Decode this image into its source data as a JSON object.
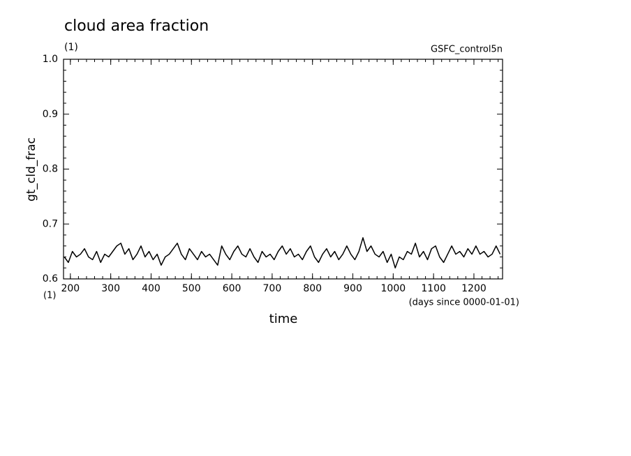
{
  "chart_data": {
    "type": "line",
    "title": "cloud area fraction",
    "subtitle": "(1)",
    "annotation": "GSFC_control5n",
    "y_label": "gt_cld_frac",
    "x_label": "time",
    "x_units": "(days since 0000-01-01)",
    "y_units": "(1)",
    "xlim": [
      183,
      1271
    ],
    "ylim": [
      0.6,
      1.0
    ],
    "xticks": [
      200,
      300,
      400,
      500,
      600,
      700,
      800,
      900,
      1000,
      1100,
      1200
    ],
    "yticks": [
      0.6,
      0.7,
      0.8,
      0.9,
      {
        "value": 1.0,
        "label": "1.0"
      }
    ],
    "x": [
      185,
      195,
      205,
      215,
      225,
      235,
      245,
      255,
      265,
      275,
      285,
      295,
      305,
      315,
      325,
      335,
      345,
      355,
      365,
      375,
      385,
      395,
      405,
      415,
      425,
      435,
      445,
      455,
      465,
      475,
      485,
      495,
      505,
      515,
      525,
      535,
      545,
      555,
      565,
      575,
      585,
      595,
      605,
      615,
      625,
      635,
      645,
      655,
      665,
      675,
      685,
      695,
      705,
      715,
      725,
      735,
      745,
      755,
      765,
      775,
      785,
      795,
      805,
      815,
      825,
      835,
      845,
      855,
      865,
      875,
      885,
      895,
      905,
      915,
      925,
      935,
      945,
      955,
      965,
      975,
      985,
      995,
      1005,
      1015,
      1025,
      1035,
      1045,
      1055,
      1065,
      1075,
      1085,
      1095,
      1105,
      1115,
      1125,
      1135,
      1145,
      1155,
      1165,
      1175,
      1185,
      1195,
      1205,
      1215,
      1225,
      1235,
      1245,
      1255,
      1265
    ],
    "series": [
      {
        "color": "#000000",
        "values": [
          0.64,
          0.63,
          0.65,
          0.64,
          0.645,
          0.655,
          0.64,
          0.635,
          0.65,
          0.63,
          0.645,
          0.64,
          0.65,
          0.66,
          0.665,
          0.645,
          0.655,
          0.635,
          0.645,
          0.66,
          0.64,
          0.65,
          0.635,
          0.645,
          0.625,
          0.64,
          0.645,
          0.655,
          0.665,
          0.645,
          0.635,
          0.655,
          0.645,
          0.635,
          0.65,
          0.64,
          0.645,
          0.635,
          0.625,
          0.66,
          0.645,
          0.635,
          0.65,
          0.66,
          0.645,
          0.64,
          0.655,
          0.64,
          0.63,
          0.65,
          0.64,
          0.645,
          0.635,
          0.65,
          0.66,
          0.645,
          0.655,
          0.64,
          0.645,
          0.635,
          0.65,
          0.66,
          0.64,
          0.63,
          0.645,
          0.655,
          0.64,
          0.65,
          0.635,
          0.645,
          0.66,
          0.645,
          0.635,
          0.65,
          0.675,
          0.65,
          0.66,
          0.645,
          0.64,
          0.65,
          0.63,
          0.645,
          0.62,
          0.64,
          0.635,
          0.65,
          0.645,
          0.665,
          0.64,
          0.65,
          0.635,
          0.655,
          0.66,
          0.64,
          0.63,
          0.645,
          0.66,
          0.645,
          0.65,
          0.64,
          0.655,
          0.645,
          0.66,
          0.645,
          0.65,
          0.64,
          0.645,
          0.66,
          0.645
        ]
      }
    ]
  }
}
